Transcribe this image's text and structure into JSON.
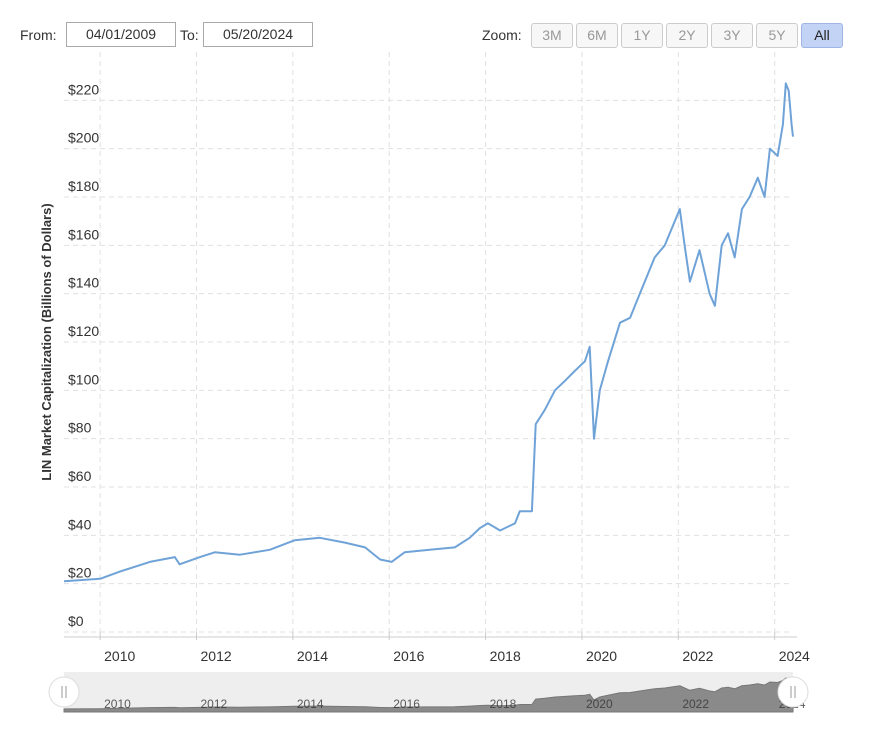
{
  "range_selector": {
    "from_label": "From:",
    "from_value": "04/01/2009",
    "to_label": "To:",
    "to_value": "05/20/2024",
    "zoom_label": "Zoom:",
    "buttons": [
      "3M",
      "6M",
      "1Y",
      "2Y",
      "3Y",
      "5Y",
      "All"
    ],
    "active_button": "All"
  },
  "chart_data": {
    "type": "line",
    "y_label": "LIN Market Capitalization (Billions of Dollars)",
    "color": "#6fa3d8",
    "x": [
      2009.25,
      2010.0,
      2010.41,
      2011.03,
      2011.55,
      2011.65,
      2012.07,
      2012.38,
      2012.9,
      2013.52,
      2014.04,
      2014.56,
      2015.08,
      2015.5,
      2015.81,
      2016.05,
      2016.32,
      2016.84,
      2017.36,
      2017.67,
      2017.88,
      2018.05,
      2018.3,
      2018.61,
      2018.71,
      2018.96,
      2019.04,
      2019.23,
      2019.44,
      2019.65,
      2019.85,
      2020.06,
      2020.16,
      2020.25,
      2020.37,
      2020.54,
      2020.79,
      2021.0,
      2021.2,
      2021.51,
      2021.72,
      2022.03,
      2022.13,
      2022.24,
      2022.44,
      2022.65,
      2022.76,
      2022.9,
      2023.03,
      2023.17,
      2023.32,
      2023.48,
      2023.65,
      2023.79,
      2023.9,
      2024.06,
      2024.17,
      2024.23,
      2024.29,
      2024.35,
      2024.38
    ],
    "values": [
      21,
      22,
      25,
      29,
      31,
      28,
      31,
      33,
      32,
      34,
      38,
      39,
      37,
      35,
      30,
      29,
      33,
      34,
      35,
      39,
      43,
      45,
      42,
      45,
      50,
      50,
      86,
      92,
      100,
      104,
      108,
      112,
      118,
      80,
      100,
      112,
      128,
      130,
      140,
      155,
      160,
      175,
      160,
      145,
      158,
      140,
      135,
      160,
      165,
      155,
      175,
      180,
      188,
      180,
      200,
      197,
      210,
      227,
      224,
      210,
      205
    ],
    "xlim": [
      2009.25,
      2024.38
    ],
    "xticks": [
      2010,
      2012,
      2014,
      2016,
      2018,
      2020,
      2022,
      2024
    ],
    "ylim": [
      0,
      240
    ],
    "yticks": [
      {
        "value": 0,
        "label": "$0"
      },
      {
        "value": 20,
        "label": "$20"
      },
      {
        "value": 40,
        "label": "$40"
      },
      {
        "value": 60,
        "label": "$60"
      },
      {
        "value": 80,
        "label": "$80"
      },
      {
        "value": 100,
        "label": "$100"
      },
      {
        "value": 120,
        "label": "$120"
      },
      {
        "value": 140,
        "label": "$140"
      },
      {
        "value": 160,
        "label": "$160"
      },
      {
        "value": 180,
        "label": "$180"
      },
      {
        "value": 200,
        "label": "$200"
      },
      {
        "value": 220,
        "label": "$220"
      }
    ],
    "grid": true
  }
}
